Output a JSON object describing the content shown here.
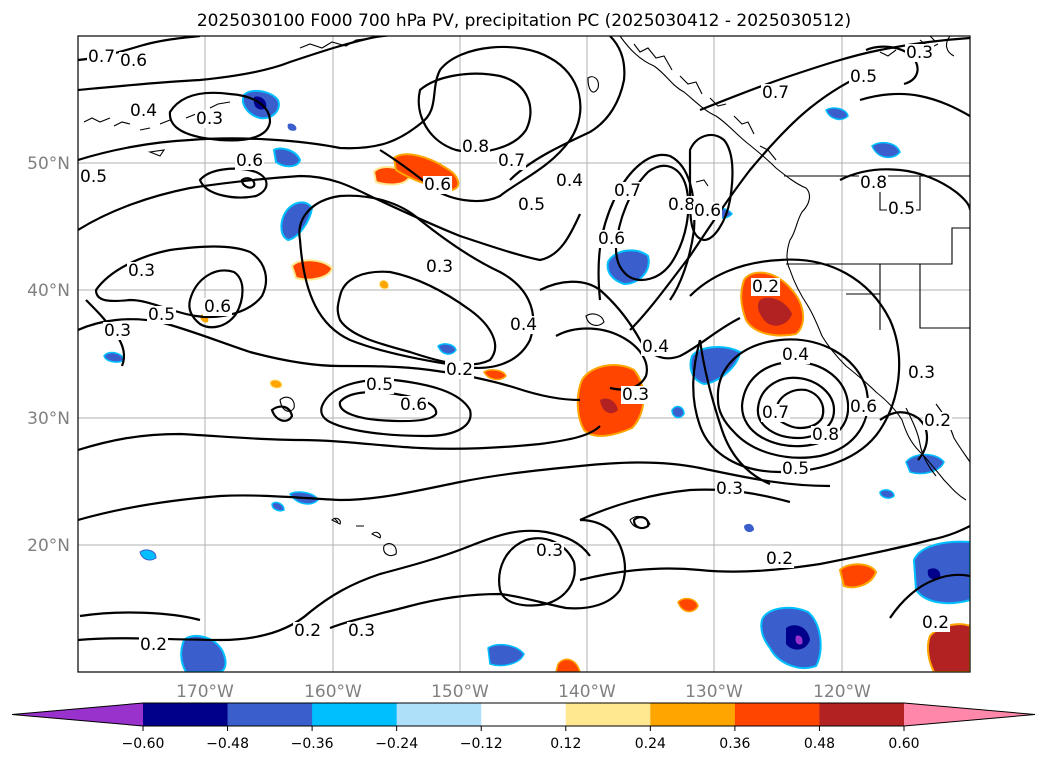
{
  "title": "2025030100 F000 700 hPa PV, precipitation PC (2025030412 - 2025030512)",
  "map": {
    "lat_labels": [
      "50°N",
      "40°N",
      "30°N",
      "20°N"
    ],
    "lon_labels": [
      "170°W",
      "160°W",
      "150°W",
      "140°W",
      "130°W",
      "120°W"
    ],
    "contour_labels": [
      {
        "id": "c1",
        "text": "0.7"
      },
      {
        "id": "c2",
        "text": "0.6"
      },
      {
        "id": "c3",
        "text": "0.4"
      },
      {
        "id": "c4",
        "text": "0.3"
      },
      {
        "id": "c5",
        "text": "0.5"
      },
      {
        "id": "c6",
        "text": "0.6"
      },
      {
        "id": "c7",
        "text": "0.6"
      },
      {
        "id": "c8",
        "text": "0.8"
      },
      {
        "id": "c9",
        "text": "0.7"
      },
      {
        "id": "c10",
        "text": "0.5"
      },
      {
        "id": "c11",
        "text": "0.4"
      },
      {
        "id": "c12",
        "text": "0.3"
      },
      {
        "id": "c13",
        "text": "0.5"
      },
      {
        "id": "c14",
        "text": "0.6"
      },
      {
        "id": "c15",
        "text": "0.3"
      },
      {
        "id": "c16",
        "text": "0.3"
      },
      {
        "id": "c17",
        "text": "0.4"
      },
      {
        "id": "c18",
        "text": "0.2"
      },
      {
        "id": "c19",
        "text": "0.5"
      },
      {
        "id": "c20",
        "text": "0.6"
      },
      {
        "id": "c21",
        "text": "0.3"
      },
      {
        "id": "c22",
        "text": "0.4"
      },
      {
        "id": "c23",
        "text": "0.6"
      },
      {
        "id": "c24",
        "text": "0.7"
      },
      {
        "id": "c25",
        "text": "0.8"
      },
      {
        "id": "c26",
        "text": "0.6"
      },
      {
        "id": "c27",
        "text": "0.7"
      },
      {
        "id": "c28",
        "text": "0.5"
      },
      {
        "id": "c29",
        "text": "0.8"
      },
      {
        "id": "c30",
        "text": "0.5"
      },
      {
        "id": "c31",
        "text": "0.2"
      },
      {
        "id": "c32",
        "text": "0.4"
      },
      {
        "id": "c33",
        "text": "0.7"
      },
      {
        "id": "c34",
        "text": "0.8"
      },
      {
        "id": "c35",
        "text": "0.6"
      },
      {
        "id": "c36",
        "text": "0.5"
      },
      {
        "id": "c37",
        "text": "0.3"
      },
      {
        "id": "c38",
        "text": "0.2"
      },
      {
        "id": "c39",
        "text": "0.3"
      },
      {
        "id": "c40",
        "text": "0.2"
      },
      {
        "id": "c41",
        "text": "0.3"
      },
      {
        "id": "c42",
        "text": "0.3"
      },
      {
        "id": "c43",
        "text": "0.2"
      },
      {
        "id": "c44",
        "text": "0.2"
      },
      {
        "id": "c45",
        "text": "0.2"
      },
      {
        "id": "c46",
        "text": "0.3"
      }
    ]
  },
  "colorbar": {
    "ticks": [
      "−0.60",
      "−0.48",
      "−0.36",
      "−0.24",
      "−0.12",
      "0.12",
      "0.24",
      "0.36",
      "0.48",
      "0.60"
    ],
    "colors": [
      "#9932cc",
      "#00008b",
      "#3a5fcd",
      "#00bfff",
      "#afe0fa",
      "#ffffff",
      "#ffe88f",
      "#ffa500",
      "#ff4500",
      "#b22222",
      "#ff88aa"
    ]
  }
}
